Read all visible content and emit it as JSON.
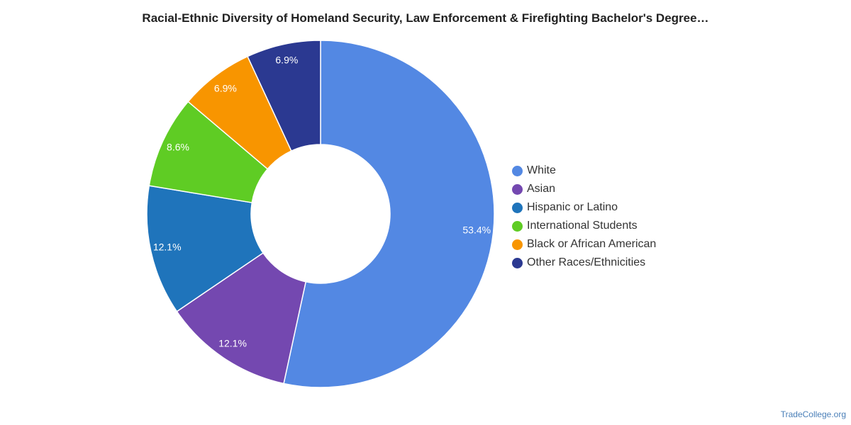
{
  "chart_data": {
    "type": "pie",
    "title": "Racial-Ethnic Diversity of Homeland Security, Law Enforcement & Firefighting Bachelor's Degree…",
    "donut": true,
    "legend_position": "right",
    "slices": [
      {
        "name": "White",
        "value": 53.4,
        "label": "53.4%",
        "color": "#5388e3"
      },
      {
        "name": "Asian",
        "value": 12.1,
        "label": "12.1%",
        "color": "#7448b0"
      },
      {
        "name": "Hispanic or Latino",
        "value": 12.1,
        "label": "12.1%",
        "color": "#1f74bb"
      },
      {
        "name": "International Students",
        "value": 8.6,
        "label": "8.6%",
        "color": "#5fcc24"
      },
      {
        "name": "Black or African American",
        "value": 6.9,
        "label": "6.9%",
        "color": "#f89500"
      },
      {
        "name": "Other Races/Ethnicities",
        "value": 6.9,
        "label": "6.9%",
        "color": "#2b3991"
      }
    ]
  },
  "source": "TradeCollege.org"
}
